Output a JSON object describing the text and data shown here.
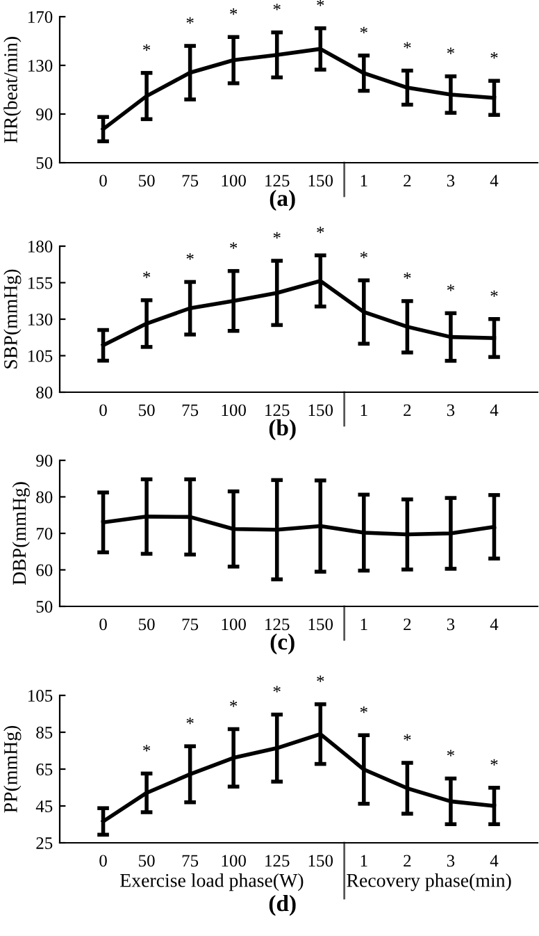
{
  "chart_data": [
    {
      "type": "line",
      "title": "(a)",
      "ylabel": "HR(beat/min)",
      "categories": [
        "0",
        "50",
        "75",
        "100",
        "125",
        "150",
        "1",
        "2",
        "3",
        "4"
      ],
      "series": [
        {
          "color": "#000000",
          "values": [
            77.6,
            104.8,
            124,
            134.3,
            138.6,
            143.5,
            123.6,
            111.7,
            106,
            103.3
          ],
          "errors": [
            10,
            19,
            22,
            19,
            18.5,
            17,
            14.5,
            14,
            15,
            14
          ]
        }
      ],
      "ylim": [
        50,
        170
      ],
      "yticks": [
        50,
        90,
        130,
        170
      ],
      "grid": false,
      "legend": false,
      "marker": "none",
      "line_style": "solid",
      "annotations": [
        {
          "text": "*",
          "x": "50",
          "y": 123.8
        },
        {
          "text": "*",
          "x": "75",
          "y": 146
        },
        {
          "text": "*",
          "x": "100",
          "y": 153.3
        },
        {
          "text": "*",
          "x": "125",
          "y": 157.1
        },
        {
          "text": "*",
          "x": "150",
          "y": 160.5
        },
        {
          "text": "*",
          "x": "1",
          "y": 138.1
        },
        {
          "text": "*",
          "x": "2",
          "y": 125.7
        },
        {
          "text": "*",
          "x": "3",
          "y": 121
        },
        {
          "text": "*",
          "x": "4",
          "y": 117.3
        }
      ]
    },
    {
      "type": "line",
      "title": "(b)",
      "ylabel": "SBP(mmHg)",
      "categories": [
        "0",
        "50",
        "75",
        "100",
        "125",
        "150",
        "1",
        "2",
        "3",
        "4"
      ],
      "series": [
        {
          "color": "#000000",
          "values": [
            112.1,
            127,
            137.5,
            142.5,
            148,
            156.2,
            134.9,
            124.8,
            117.8,
            117.1
          ],
          "errors": [
            10.5,
            16,
            18,
            20.5,
            22,
            17.5,
            21.7,
            17.6,
            16.3,
            13
          ]
        }
      ],
      "ylim": [
        80,
        180
      ],
      "yticks": [
        80,
        105,
        130,
        155,
        180
      ],
      "grid": false,
      "legend": false,
      "marker": "none",
      "line_style": "solid",
      "annotations": [
        {
          "text": "*",
          "x": "50",
          "y": 143
        },
        {
          "text": "*",
          "x": "75",
          "y": 155.5
        },
        {
          "text": "*",
          "x": "100",
          "y": 163
        },
        {
          "text": "*",
          "x": "125",
          "y": 170
        },
        {
          "text": "*",
          "x": "150",
          "y": 173.7
        },
        {
          "text": "*",
          "x": "1",
          "y": 156.6
        },
        {
          "text": "*",
          "x": "2",
          "y": 142.4
        },
        {
          "text": "*",
          "x": "3",
          "y": 134.1
        },
        {
          "text": "*",
          "x": "4",
          "y": 130.1
        }
      ]
    },
    {
      "type": "line",
      "title": "(c)",
      "ylabel": "DBP(mmHg)",
      "categories": [
        "0",
        "50",
        "75",
        "100",
        "125",
        "150",
        "1",
        "2",
        "3",
        "4"
      ],
      "series": [
        {
          "color": "#000000",
          "values": [
            73,
            74.6,
            74.5,
            71.2,
            71,
            72,
            70.2,
            69.7,
            70,
            71.8
          ],
          "errors": [
            8.2,
            10.2,
            10.3,
            10.3,
            13.6,
            12.5,
            10.4,
            9.6,
            9.7,
            8.7
          ]
        }
      ],
      "ylim": [
        50,
        90
      ],
      "yticks": [
        50,
        60,
        70,
        80,
        90
      ],
      "grid": false,
      "legend": false,
      "marker": "none",
      "line_style": "solid"
    },
    {
      "type": "line",
      "title": "(d)",
      "ylabel": "PP(mmHg)",
      "categories": [
        "0",
        "50",
        "75",
        "100",
        "125",
        "150",
        "1",
        "2",
        "3",
        "4"
      ],
      "series": [
        {
          "color": "#000000",
          "values": [
            36.6,
            52.1,
            62.2,
            71.1,
            76.4,
            84,
            64.8,
            54.6,
            47.5,
            45
          ],
          "errors": [
            7.2,
            10.5,
            15.2,
            15.6,
            18.2,
            16.2,
            18.6,
            13.8,
            12.4,
            9.9
          ]
        }
      ],
      "ylim": [
        25,
        105
      ],
      "yticks": [
        25,
        45,
        65,
        85,
        105
      ],
      "grid": false,
      "legend": false,
      "marker": "none",
      "line_style": "solid",
      "annotations": [
        {
          "text": "*",
          "x": "50",
          "y": 62.6
        },
        {
          "text": "*",
          "x": "75",
          "y": 77.4
        },
        {
          "text": "*",
          "x": "100",
          "y": 86.7
        },
        {
          "text": "*",
          "x": "125",
          "y": 94.6
        },
        {
          "text": "*",
          "x": "150",
          "y": 100.2
        },
        {
          "text": "*",
          "x": "1",
          "y": 83.4
        },
        {
          "text": "*",
          "x": "2",
          "y": 68.4
        },
        {
          "text": "*",
          "x": "3",
          "y": 59.9
        },
        {
          "text": "*",
          "x": "4",
          "y": 54.9
        },
        "Exercise load phase(W)",
        "Recovery phase(min)"
      ]
    }
  ]
}
